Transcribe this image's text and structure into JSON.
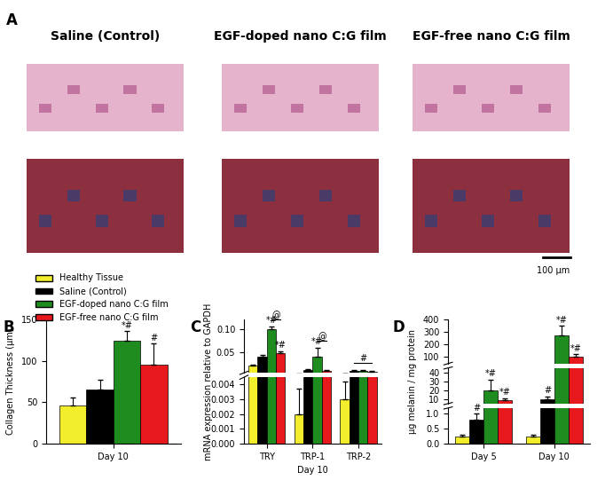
{
  "panel_a": {
    "panel_label": "A",
    "columns": [
      "Saline (Control)",
      "EGF-doped nano C:G film",
      "EGF-free nano C:G film"
    ],
    "scale_bar": "100 µm"
  },
  "chart_data": [
    {
      "type": "bar",
      "panel_label": "B",
      "ylabel": "Collagen Thickness (µm)",
      "categories": [
        "Day 10"
      ],
      "ylim": [
        0,
        150
      ],
      "yticks": [
        0,
        50,
        100,
        150
      ],
      "legend": "upper left",
      "series": [
        {
          "name": "Healthy Tissue",
          "color": "#f2ee2b",
          "values": [
            46
          ],
          "errors": [
            10
          ]
        },
        {
          "name": "Saline (Control)",
          "color": "#000000",
          "values": [
            65
          ],
          "errors": [
            12
          ]
        },
        {
          "name": "EGF-doped nano C:G film",
          "color": "#1e8c1e",
          "values": [
            124
          ],
          "errors": [
            12
          ]
        },
        {
          "name": "EGF-free nano C:G film",
          "color": "#e8191d",
          "values": [
            96
          ],
          "errors": [
            25
          ]
        }
      ],
      "annotations": [
        {
          "text": "*#",
          "category": "Day 10",
          "series": "EGF-doped nano C:G film"
        },
        {
          "text": "#",
          "category": "Day 10",
          "series": "EGF-free nano C:G film"
        }
      ]
    },
    {
      "type": "bar",
      "panel_label": "C",
      "ylabel": "mRNA expression relative to GAPDH",
      "xlabel": "Day 10",
      "categories": [
        "TRY",
        "TRP-1",
        "TRP-2"
      ],
      "segments": [
        {
          "ylim": [
            0,
            0.0045
          ],
          "yticks": [
            {
              "value": 0,
              "label": "0.000"
            },
            0.001,
            0.002,
            0.003,
            0.004
          ]
        },
        {
          "ylim": [
            0.005,
            0.12
          ],
          "yticks": [
            0.05,
            {
              "value": 0.1,
              "label": "0.10"
            }
          ]
        }
      ],
      "series": [
        {
          "name": "Healthy Tissue",
          "color": "#f2ee2b",
          "values": [
            0.021,
            0.002,
            0.003
          ],
          "errors": [
            0.002,
            0.0017,
            0.0012
          ]
        },
        {
          "name": "Saline (Control)",
          "color": "#000000",
          "values": [
            0.04,
            0.011,
            0.009
          ],
          "errors": [
            0.003,
            0.002,
            0.002
          ]
        },
        {
          "name": "EGF-doped nano C:G film",
          "color": "#1e8c1e",
          "values": [
            0.1,
            0.04,
            0.01
          ],
          "errors": [
            0.006,
            0.02,
            0.002
          ]
        },
        {
          "name": "EGF-free nano C:G film",
          "color": "#e8191d",
          "values": [
            0.048,
            0.009,
            0.007
          ],
          "errors": [
            0.004,
            0.002,
            0.002
          ]
        }
      ],
      "annotations": [
        {
          "text": "*#",
          "category": "TRY",
          "series": "EGF-doped nano C:G film"
        },
        {
          "text": "*#",
          "category": "TRY",
          "series": "EGF-free nano C:G film"
        },
        {
          "text": "*#",
          "category": "TRP-1",
          "series": "EGF-doped nano C:G film"
        }
      ],
      "brackets": [
        {
          "text": "@",
          "category": "TRY",
          "from": "EGF-doped nano C:G film",
          "to": "EGF-free nano C:G film"
        },
        {
          "text": "@",
          "category": "TRP-1",
          "from": "EGF-doped nano C:G film",
          "to": "EGF-free nano C:G film"
        },
        {
          "text": "#",
          "category": "TRP-2",
          "from": "Saline (Control)",
          "to": "EGF-free nano C:G film"
        }
      ]
    },
    {
      "type": "bar",
      "panel_label": "D",
      "ylabel": "µg melanin / mg protein",
      "categories": [
        "Day 5",
        "Day 10"
      ],
      "segments": [
        {
          "ylim": [
            0,
            1.2
          ],
          "yticks": [
            {
              "value": 0,
              "label": "0.0"
            },
            0.5,
            1.0
          ]
        },
        {
          "ylim": [
            5,
            45
          ],
          "yticks": [
            10,
            20,
            30,
            40
          ]
        },
        {
          "ylim": [
            45,
            400
          ],
          "yticks": [
            100,
            200,
            300,
            400
          ]
        }
      ],
      "series": [
        {
          "name": "Healthy Tissue",
          "color": "#f2ee2b",
          "values": [
            0.25,
            0.25
          ],
          "errors": [
            0.05,
            0.05
          ]
        },
        {
          "name": "Saline (Control)",
          "color": "#000000",
          "values": [
            0.8,
            10
          ],
          "errors": [
            0.2,
            3
          ]
        },
        {
          "name": "EGF-doped nano C:G film",
          "color": "#1e8c1e",
          "values": [
            20,
            270
          ],
          "errors": [
            12,
            80
          ]
        },
        {
          "name": "EGF-free nano C:G film",
          "color": "#e8191d",
          "values": [
            9,
            100
          ],
          "errors": [
            2,
            20
          ]
        }
      ],
      "annotations": [
        {
          "text": "#",
          "category": "Day 5",
          "series": "Saline (Control)"
        },
        {
          "text": "*#",
          "category": "Day 5",
          "series": "EGF-doped nano C:G film"
        },
        {
          "text": "*#",
          "category": "Day 5",
          "series": "EGF-free nano C:G film"
        },
        {
          "text": "#",
          "category": "Day 10",
          "series": "Saline (Control)"
        },
        {
          "text": "*#",
          "category": "Day 10",
          "series": "EGF-doped nano C:G film"
        },
        {
          "text": "*#",
          "category": "Day 10",
          "series": "EGF-free nano C:G film"
        }
      ]
    }
  ]
}
